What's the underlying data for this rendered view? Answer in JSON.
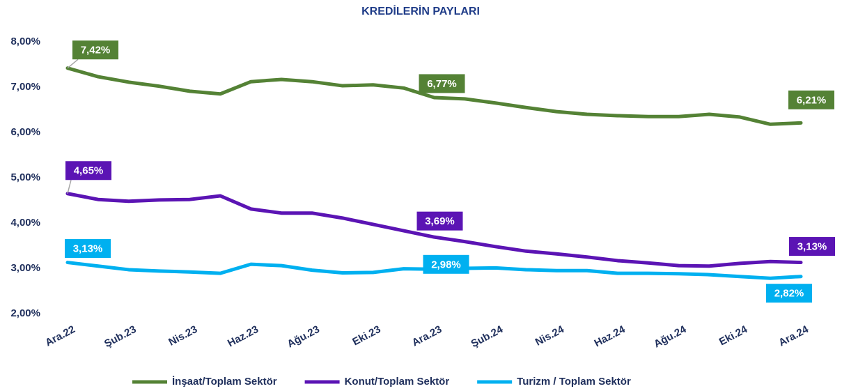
{
  "chart_data": {
    "type": "line",
    "title": "KREDİLERİN PAYLARI",
    "categories": [
      "Ara.22",
      null,
      "Şub.23",
      null,
      "Nis.23",
      null,
      "Haz.23",
      null,
      "Ağu.23",
      null,
      "Eki.23",
      null,
      "Ara.23",
      null,
      "Şub.24",
      null,
      "Nis.24",
      null,
      "Haz.24",
      null,
      "Ağu.24",
      null,
      "Eki.24",
      null,
      "Ara.24"
    ],
    "ylim": [
      2,
      8
    ],
    "yticks": [
      {
        "value": 2,
        "label": "2,00%"
      },
      {
        "value": 3,
        "label": "3,00%"
      },
      {
        "value": 4,
        "label": "4,00%"
      },
      {
        "value": 5,
        "label": "5,00%"
      },
      {
        "value": 6,
        "label": "6,00%"
      },
      {
        "value": 7,
        "label": "7,00%"
      },
      {
        "value": 8,
        "label": "8,00%"
      }
    ],
    "legend": "bottom",
    "series": [
      {
        "name": "İnşaat/Toplam Sektör",
        "color": "#548235",
        "values": [
          7.42,
          7.23,
          7.11,
          7.02,
          6.91,
          6.85,
          7.12,
          7.17,
          7.12,
          7.03,
          7.05,
          6.98,
          6.77,
          6.74,
          6.65,
          6.55,
          6.46,
          6.4,
          6.37,
          6.35,
          6.35,
          6.4,
          6.34,
          6.18,
          6.21
        ],
        "value_labels": [
          "7,42%",
          null,
          null,
          null,
          null,
          null,
          null,
          null,
          null,
          null,
          null,
          null,
          "6,77%",
          null,
          null,
          null,
          null,
          null,
          null,
          null,
          null,
          null,
          null,
          null,
          "6,21%"
        ]
      },
      {
        "name": "Konut/Toplam Sektör",
        "color": "#5b14b4",
        "values": [
          4.65,
          4.52,
          4.48,
          4.51,
          4.52,
          4.6,
          4.31,
          4.22,
          4.22,
          4.11,
          3.97,
          3.83,
          3.69,
          3.59,
          3.48,
          3.38,
          3.32,
          3.25,
          3.17,
          3.12,
          3.06,
          3.05,
          3.11,
          3.15,
          3.13
        ],
        "value_labels": [
          "4,65%",
          null,
          null,
          null,
          null,
          null,
          null,
          null,
          null,
          null,
          null,
          null,
          "3,69%",
          null,
          null,
          null,
          null,
          null,
          null,
          null,
          null,
          null,
          null,
          null,
          "3,13%"
        ]
      },
      {
        "name": "Turizm / Toplam Sektör",
        "color": "#00b0f0",
        "values": [
          3.13,
          3.05,
          2.97,
          2.94,
          2.92,
          2.89,
          3.09,
          3.06,
          2.96,
          2.9,
          2.91,
          2.99,
          2.98,
          3.0,
          3.01,
          2.97,
          2.95,
          2.95,
          2.89,
          2.89,
          2.88,
          2.86,
          2.82,
          2.78,
          2.82
        ],
        "value_labels": [
          "3,13%",
          null,
          null,
          null,
          null,
          null,
          null,
          null,
          null,
          null,
          null,
          null,
          "2,98%",
          null,
          null,
          null,
          null,
          null,
          null,
          null,
          null,
          null,
          null,
          null,
          "2,82%"
        ]
      }
    ]
  }
}
